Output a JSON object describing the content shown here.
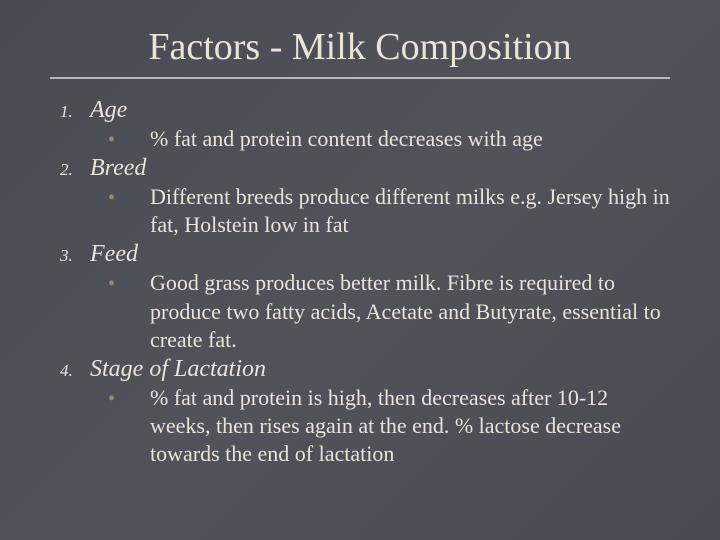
{
  "slide": {
    "title": "Factors - Milk Composition",
    "background_color": "#4f4f57",
    "title_color": "#e8e4d8",
    "text_color": "#e8e4d8",
    "bullet_color": "#9b8b6b",
    "title_fontsize": 38,
    "body_fontsize": 22,
    "items": [
      {
        "num": "1.",
        "label": "Age",
        "sub": "% fat and protein content decreases with age"
      },
      {
        "num": "2.",
        "label": "Breed",
        "sub": "Different breeds produce different milks e.g. Jersey high in fat, Holstein low in fat"
      },
      {
        "num": "3.",
        "label": "Feed",
        "sub": "Good grass produces better milk. Fibre is required to produce two fatty acids, Acetate and Butyrate, essential to create fat."
      },
      {
        "num": "4.",
        "label": "Stage of Lactation",
        "sub": "% fat and protein is high, then decreases after 10-12 weeks, then rises again at the end. % lactose decrease towards the end of lactation"
      }
    ]
  }
}
